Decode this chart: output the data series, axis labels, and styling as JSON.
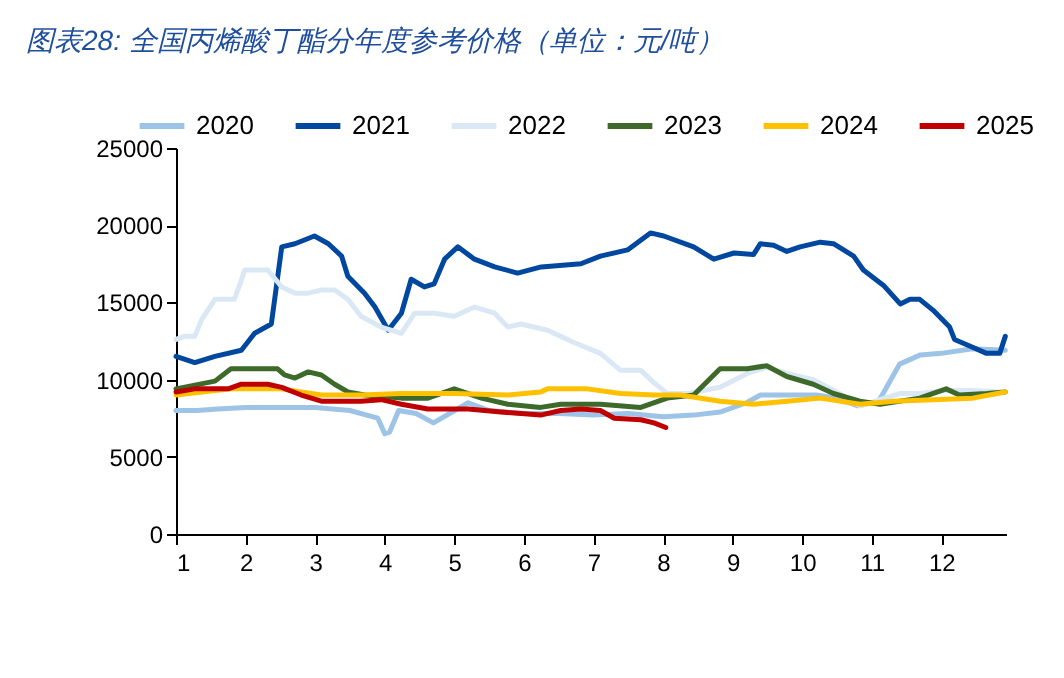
{
  "chart_data": {
    "type": "line",
    "title": "图表28:  全国丙烯酸丁酯分年度参考价格（单位：元/吨）",
    "xlim": [
      1,
      12.93
    ],
    "xticks": [
      1,
      2,
      3,
      4,
      5,
      6,
      7,
      8,
      9,
      10,
      11,
      12
    ],
    "ylim": [
      0,
      25000
    ],
    "yticks": [
      0,
      5000,
      10000,
      15000,
      20000,
      25000
    ],
    "grid": false,
    "legend": "top",
    "marker": "none",
    "line_style": "solid",
    "series": [
      {
        "name": "2020",
        "color": "#9dc3e6",
        "x": [
          1.0,
          1.3,
          1.6,
          2.0,
          2.5,
          3.0,
          3.5,
          3.9,
          4.0,
          4.07,
          4.2,
          4.45,
          4.7,
          5.2,
          5.5,
          6.0,
          6.5,
          7.0,
          7.5,
          8.0,
          8.44,
          8.82,
          9.2,
          9.4,
          9.8,
          10.2,
          10.5,
          10.8,
          11.1,
          11.4,
          11.7,
          12.0,
          12.45,
          12.92
        ],
        "values": [
          8000,
          8000,
          8100,
          8200,
          8200,
          8200,
          8000,
          7500,
          6500,
          6600,
          8000,
          7800,
          7200,
          8500,
          8000,
          7800,
          7800,
          7700,
          7800,
          7600,
          7700,
          7900,
          8500,
          9000,
          9000,
          9000,
          8800,
          8300,
          8600,
          11000,
          11600,
          11700,
          12000,
          11900
        ]
      },
      {
        "name": "2021",
        "color": "#0047a0",
        "x": [
          1.0,
          1.27,
          1.56,
          1.94,
          2.13,
          2.37,
          2.52,
          2.71,
          2.99,
          3.19,
          3.38,
          3.47,
          3.71,
          3.86,
          4.05,
          4.24,
          4.38,
          4.57,
          4.71,
          4.86,
          5.05,
          5.29,
          5.58,
          5.91,
          6.25,
          6.82,
          7.1,
          7.49,
          7.82,
          8.01,
          8.44,
          8.73,
          9.02,
          9.3,
          9.4,
          9.59,
          9.78,
          9.97,
          10.26,
          10.45,
          10.74,
          10.88,
          11.17,
          11.41,
          11.55,
          11.69,
          11.88,
          12.12,
          12.19,
          12.45,
          12.65,
          12.84,
          12.92
        ],
        "values": [
          11500,
          11100,
          11500,
          11900,
          13000,
          13600,
          18600,
          18800,
          19300,
          18800,
          18000,
          16700,
          15600,
          14700,
          13200,
          14300,
          16500,
          16000,
          16200,
          17800,
          18600,
          17800,
          17300,
          16900,
          17300,
          17500,
          18000,
          18400,
          19500,
          19300,
          18600,
          17800,
          18200,
          18100,
          18800,
          18700,
          18300,
          18600,
          18900,
          18800,
          18000,
          17100,
          16100,
          14900,
          15200,
          15200,
          14500,
          13400,
          12600,
          12100,
          11700,
          11700,
          12800
        ]
      },
      {
        "name": "2022",
        "color": "#dae8f6",
        "x": [
          1.0,
          1.12,
          1.27,
          1.37,
          1.56,
          1.84,
          1.99,
          2.32,
          2.52,
          2.71,
          2.9,
          3.09,
          3.28,
          3.47,
          3.66,
          3.95,
          4.24,
          4.43,
          4.71,
          5.0,
          5.29,
          5.58,
          5.77,
          5.96,
          6.34,
          6.72,
          7.1,
          7.39,
          7.68,
          7.87,
          8.06,
          8.35,
          8.82,
          9.21,
          9.49,
          9.78,
          10.16,
          10.54,
          10.83,
          11.12,
          11.41,
          11.69,
          12.07,
          12.45,
          12.84
        ],
        "values": [
          12600,
          12800,
          12800,
          13900,
          15200,
          15200,
          17100,
          17100,
          16000,
          15600,
          15600,
          15800,
          15800,
          15200,
          14100,
          13400,
          13000,
          14300,
          14300,
          14100,
          14700,
          14300,
          13400,
          13600,
          13200,
          12400,
          11700,
          10600,
          10600,
          9800,
          9100,
          9100,
          9500,
          10400,
          10800,
          10400,
          10000,
          9100,
          8300,
          8700,
          9100,
          9100,
          9300,
          9300,
          9200
        ]
      },
      {
        "name": "2023",
        "color": "#3d6a2a",
        "x": [
          1.0,
          1.56,
          1.79,
          2.46,
          2.56,
          2.71,
          2.9,
          3.09,
          3.28,
          3.47,
          3.71,
          4.24,
          4.62,
          5.0,
          5.39,
          5.77,
          6.24,
          6.53,
          7.1,
          7.68,
          8.06,
          8.44,
          8.82,
          9.21,
          9.49,
          9.78,
          10.16,
          10.45,
          10.83,
          11.12,
          11.69,
          12.07,
          12.26,
          12.65,
          12.92
        ],
        "values": [
          9400,
          9900,
          10700,
          10700,
          10300,
          10100,
          10500,
          10300,
          9700,
          9200,
          9000,
          8800,
          8800,
          9400,
          8800,
          8400,
          8200,
          8400,
          8400,
          8200,
          8800,
          9000,
          10700,
          10700,
          10900,
          10200,
          9700,
          9100,
          8600,
          8400,
          8800,
          9400,
          9000,
          9100,
          9200
        ]
      },
      {
        "name": "2024",
        "color": "#ffc000",
        "x": [
          1.0,
          1.37,
          1.79,
          2.51,
          2.8,
          3.09,
          3.66,
          4.24,
          5.0,
          5.77,
          6.24,
          6.34,
          6.91,
          7.39,
          7.87,
          8.25,
          8.82,
          9.3,
          9.78,
          10.26,
          10.83,
          11.31,
          11.88,
          12.45,
          12.92
        ],
        "values": [
          9000,
          9200,
          9400,
          9400,
          9200,
          9000,
          9000,
          9100,
          9100,
          9000,
          9200,
          9400,
          9400,
          9100,
          9000,
          9000,
          8600,
          8400,
          8600,
          8800,
          8400,
          8600,
          8700,
          8800,
          9200
        ]
      },
      {
        "name": "2025",
        "color": "#c00000",
        "x": [
          1.0,
          1.27,
          1.75,
          1.94,
          2.32,
          2.52,
          2.8,
          3.09,
          3.66,
          3.95,
          4.24,
          4.62,
          5.2,
          5.67,
          6.24,
          6.53,
          6.82,
          7.1,
          7.3,
          7.68,
          7.87,
          8.04
        ],
        "values": [
          9200,
          9400,
          9400,
          9700,
          9700,
          9500,
          9000,
          8600,
          8600,
          8700,
          8400,
          8100,
          8100,
          7900,
          7700,
          8000,
          8100,
          8000,
          7500,
          7400,
          7200,
          6900
        ]
      }
    ]
  }
}
